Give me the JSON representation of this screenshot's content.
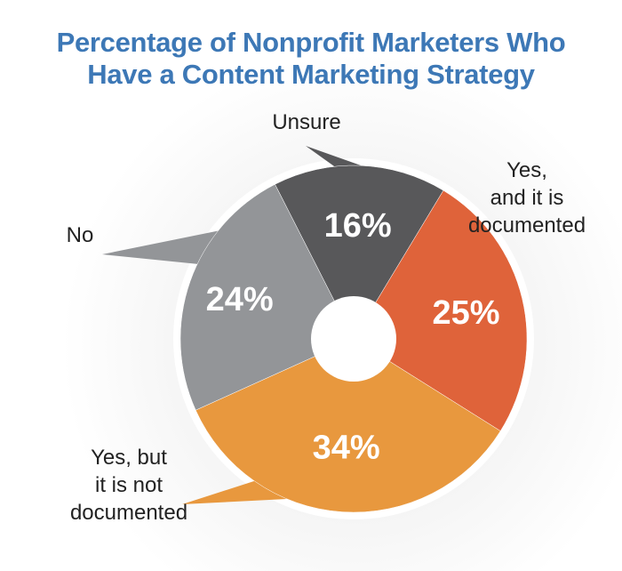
{
  "chart_data": {
    "type": "pie",
    "title_lines": [
      "Percentage of Nonprofit Marketers Who",
      "Have a Content Marketing Strategy"
    ],
    "slices": [
      {
        "label_lines": [
          "Unsure"
        ],
        "value": 16,
        "value_label": "16%",
        "color": "#58585a"
      },
      {
        "label_lines": [
          "Yes,",
          "and it is",
          "documented"
        ],
        "value": 25,
        "value_label": "25%",
        "color": "#df633a"
      },
      {
        "label_lines": [
          "Yes, but",
          "it is not",
          "documented"
        ],
        "value": 34,
        "value_label": "34%",
        "color": "#e8983e"
      },
      {
        "label_lines": [
          "No"
        ],
        "value": 24,
        "value_label": "24%",
        "color": "#939598"
      }
    ],
    "colors": {
      "title": "#3d78b6",
      "ring": "#ffffff",
      "hole": "#ffffff",
      "value_text": "#ffffff",
      "label_text": "#222222"
    },
    "donut": true
  }
}
